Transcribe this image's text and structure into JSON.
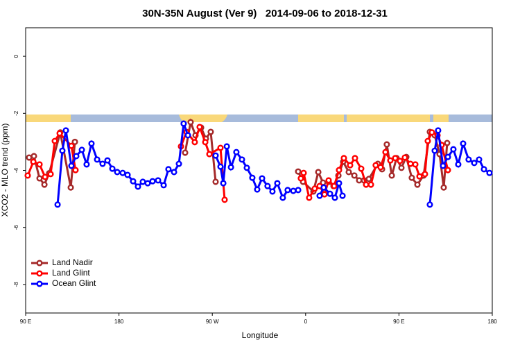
{
  "chart_data": {
    "type": "line",
    "title": "30N-35N August (Ver 9)   2014-09-06 to 2018-12-31",
    "x_label": "Longitude",
    "y_label": "XCO2 - MLO trend (ppm)",
    "xlim": [
      90,
      540
    ],
    "xticks": [
      {
        "value": 90,
        "label": "90 E"
      },
      {
        "value": 180,
        "label": "180"
      },
      {
        "value": 270,
        "label": "90 W"
      },
      {
        "value": 360,
        "label": "0"
      },
      {
        "value": 450,
        "label": "90 E"
      },
      {
        "value": 540,
        "label": "180"
      }
    ],
    "ylim": [
      -9,
      1
    ],
    "yticks": [
      -8,
      -6,
      -4,
      -2,
      0
    ],
    "legend": "bottom-left",
    "series": [
      {
        "name": "Land Nadir",
        "color": "#a52a2a",
        "x": [
          93.3,
          98.0,
          103.4,
          108.1,
          112.7,
          123.4,
          133.5,
          137.5,
          null,
          243.8,
          249.1,
          253.8,
          259.2,
          263.8,
          268.5,
          273.2,
          null,
          352.8,
          357.5,
          367.5,
          372.2,
          376.8,
          382.2,
          386.9,
          391.6,
          396.2,
          401.6,
          407.0,
          411.6,
          416.3,
          421.0,
          429.7,
          433.7,
          438.3,
          443.1,
          447.7,
          452.4,
          457.1,
          462.4,
          467.8,
          473.8,
          479.8,
          484.5,
          489.2,
          493.2,
          496.5
        ],
        "values": [
          -3.55,
          -3.5,
          -4.28,
          -4.5,
          -4.1,
          -2.67,
          -4.6,
          -3.0,
          null,
          -3.38,
          -2.31,
          -2.77,
          -2.5,
          -2.89,
          -2.65,
          -4.4,
          null,
          -4.04,
          -4.4,
          -4.74,
          -4.06,
          -4.43,
          -4.4,
          -4.55,
          -4.18,
          -3.7,
          -4.06,
          -4.18,
          -4.35,
          -4.35,
          -4.3,
          -3.77,
          -3.96,
          -3.09,
          -4.18,
          -3.57,
          -3.91,
          -3.53,
          -4.26,
          -4.5,
          -4.18,
          -2.65,
          -2.77,
          -3.43,
          -4.6,
          -3.04
        ]
      },
      {
        "name": "Land Glint",
        "color": "#ff0000",
        "x": [
          92.0,
          97.4,
          103.4,
          108.7,
          114.1,
          118.1,
          122.8,
          134.1,
          138.1,
          null,
          239.8,
          245.1,
          253.1,
          257.8,
          263.2,
          267.2,
          277.9,
          281.9,
          null,
          355.4,
          358.1,
          363.4,
          368.8,
          373.5,
          378.2,
          382.2,
          387.5,
          392.2,
          396.9,
          402.9,
          407.6,
          413.6,
          418.3,
          423.0,
          427.6,
          432.3,
          437.0,
          441.7,
          446.4,
          451.0,
          455.7,
          461.1,
          465.8,
          469.8,
          475.1,
          477.8,
          481.8,
          487.2,
          491.2,
          497.2
        ],
        "values": [
          -4.18,
          -3.7,
          -3.79,
          -4.23,
          -4.13,
          -2.97,
          -2.7,
          -3.14,
          -3.99,
          null,
          -3.16,
          -2.65,
          -3.01,
          -2.48,
          -3.01,
          -3.43,
          -3.21,
          -5.03,
          null,
          -4.28,
          -4.09,
          -4.96,
          -4.64,
          -4.55,
          -4.84,
          -4.35,
          -4.55,
          -3.99,
          -3.57,
          -3.82,
          -3.57,
          -3.94,
          -4.5,
          -4.5,
          -3.82,
          -3.89,
          -3.36,
          -3.65,
          -3.57,
          -3.67,
          -3.55,
          -3.77,
          -3.79,
          -4.21,
          -4.13,
          -2.97,
          -2.67,
          -2.77,
          -3.11,
          -3.99
        ]
      },
      {
        "name": "Ocean Glint",
        "color": "#0000ff",
        "x": [
          120.8,
          125.4,
          128.8,
          134.1,
          138.8,
          144.2,
          148.8,
          153.5,
          158.9,
          164.2,
          168.9,
          173.6,
          178.3,
          183.6,
          188.3,
          193.6,
          198.3,
          203.0,
          207.7,
          212.4,
          217.7,
          223.1,
          227.7,
          233.1,
          237.8,
          242.4,
          246.5,
          null,
          273.2,
          277.9,
          280.6,
          284.0,
          288.0,
          293.2,
          298.6,
          303.3,
          308.6,
          313.3,
          318.0,
          323.3,
          328.0,
          332.7,
          338.0,
          342.7,
          348.1,
          352.8,
          null,
          373.5,
          377.5,
          383.5,
          388.2,
          392.2,
          395.6,
          null,
          479.8,
          484.5,
          487.8,
          492.5,
          497.2,
          502.5,
          507.2,
          511.9,
          517.2,
          522.6,
          527.3,
          532.0,
          537.3
        ],
        "values": [
          -5.2,
          -3.31,
          -2.6,
          -3.84,
          -3.5,
          -3.28,
          -3.79,
          -3.06,
          -3.62,
          -3.77,
          -3.65,
          -3.94,
          -4.06,
          -4.09,
          -4.16,
          -4.38,
          -4.57,
          -4.4,
          -4.45,
          -4.38,
          -4.35,
          -4.52,
          -3.96,
          -4.06,
          -3.77,
          -2.36,
          -2.77,
          null,
          -3.48,
          -3.87,
          -4.45,
          -3.16,
          -3.89,
          -3.36,
          -3.62,
          -3.91,
          -4.26,
          -4.67,
          -4.28,
          -4.55,
          -4.74,
          -4.45,
          -4.96,
          -4.69,
          -4.72,
          -4.69,
          null,
          -4.89,
          -4.6,
          -4.82,
          -4.96,
          -4.45,
          -4.89,
          null,
          -5.2,
          -3.31,
          -2.6,
          -3.84,
          -3.53,
          -3.26,
          -3.79,
          -3.06,
          -3.62,
          -3.74,
          -3.62,
          -3.96,
          -4.09
        ]
      }
    ]
  }
}
